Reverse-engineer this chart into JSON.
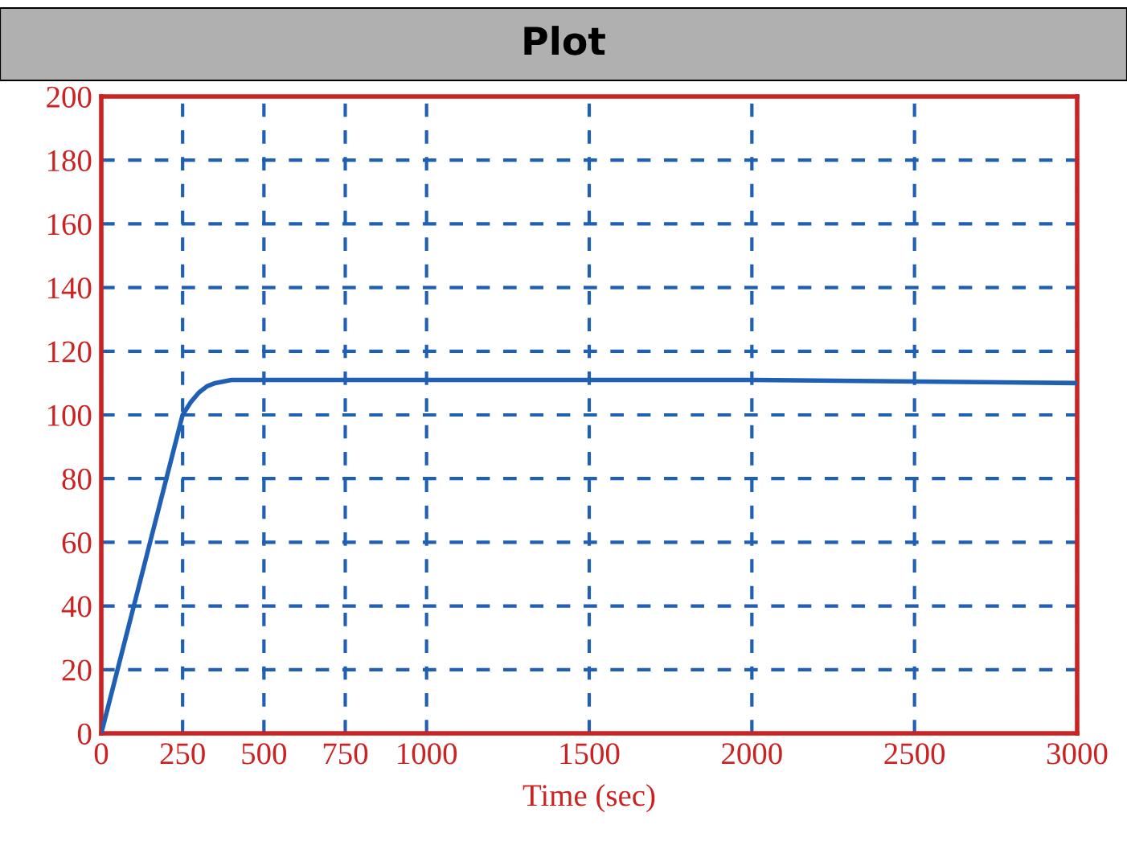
{
  "chart_data": {
    "type": "line",
    "title": "Plot",
    "xlabel": "Time (sec)",
    "series": [
      {
        "color": "#1f5fb4",
        "x": [
          0,
          50,
          100,
          150,
          200,
          250,
          275,
          300,
          325,
          350,
          400,
          500,
          1000,
          2000,
          3000
        ],
        "values": [
          0,
          20,
          40,
          60,
          80,
          100,
          104,
          107,
          109,
          110,
          111,
          111,
          111,
          111,
          110
        ]
      }
    ],
    "xlim": [
      0,
      3000
    ],
    "xticks": [
      0,
      250,
      500,
      750,
      1000,
      1500,
      2000,
      2500,
      3000
    ],
    "ylim": [
      0,
      200
    ],
    "yticks": [
      0,
      20,
      40,
      60,
      80,
      100,
      120,
      140,
      160,
      180,
      200
    ],
    "grid": true,
    "marker": "none",
    "line_style": "solid"
  }
}
